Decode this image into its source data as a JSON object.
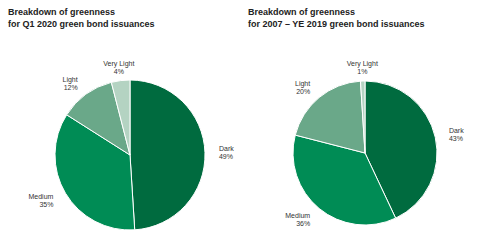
{
  "chart_data": [
    {
      "type": "pie",
      "title": "Breakdown of greenness\nfor Q1 2020 green bond issuances",
      "categories": [
        "Dark",
        "Medium",
        "Light",
        "Very Light"
      ],
      "values": [
        49,
        35,
        12,
        4
      ],
      "value_labels": [
        "49%",
        "35%",
        "12%",
        "4%"
      ],
      "data_labels": true,
      "colors": [
        "#006b3f",
        "#008c55",
        "#6aa889",
        "#b4d3c2"
      ]
    },
    {
      "type": "pie",
      "title": "Breakdown of greenness\nfor 2007 – YE 2019 green bond issuances",
      "categories": [
        "Dark",
        "Medium",
        "Light",
        "Very Light"
      ],
      "values": [
        43,
        36,
        20,
        1
      ],
      "value_labels": [
        "43%",
        "36%",
        "20%",
        "1%"
      ],
      "data_labels": true,
      "colors": [
        "#006b3f",
        "#008c55",
        "#6aa889",
        "#b4d3c2"
      ]
    }
  ]
}
